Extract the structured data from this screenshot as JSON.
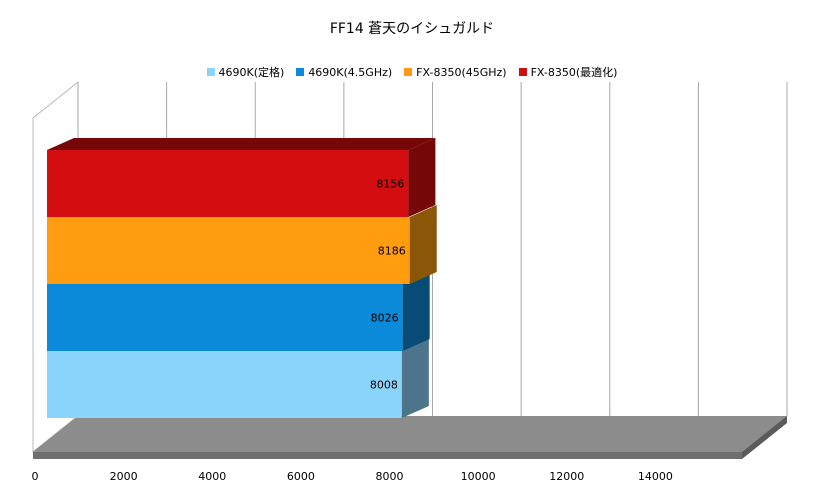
{
  "chart_data": {
    "type": "bar",
    "orientation": "horizontal",
    "style": "3d",
    "title": "FF14 蒼天のイシュガルド",
    "legend_position": "top",
    "xlim": [
      0,
      16000
    ],
    "x_ticks": [
      0,
      2000,
      4000,
      6000,
      8000,
      10000,
      12000,
      14000
    ],
    "grid": true,
    "series": [
      {
        "name": "4690K(定格)",
        "value": 8008,
        "color": "#8ad4fc"
      },
      {
        "name": "4690K(4.5GHz)",
        "value": 8026,
        "color": "#0a8ad8"
      },
      {
        "name": "FX-8350(45GHz)",
        "value": 8186,
        "color": "#ff9c10"
      },
      {
        "name": "FX-8350(最適化)",
        "value": 8156,
        "color": "#d40d10"
      }
    ]
  }
}
